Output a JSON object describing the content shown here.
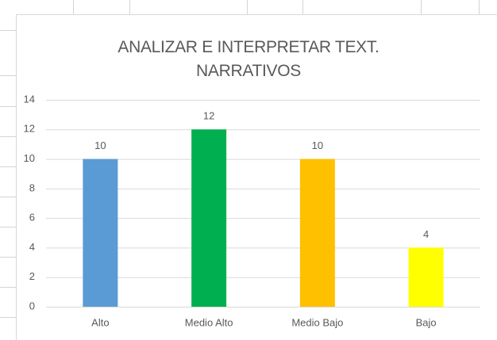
{
  "chart_data": {
    "type": "bar",
    "title": "ANALIZAR  E INTERPRETAR TEXT. NARRATIVOS",
    "categories": [
      "Alto",
      "Medio Alto",
      "Medio Bajo",
      "Bajo"
    ],
    "values": [
      10,
      12,
      10,
      4
    ],
    "colors": [
      "#5b9bd5",
      "#00b050",
      "#ffc000",
      "#ffff00"
    ],
    "ylim": [
      0,
      14
    ],
    "yticks": [
      0,
      2,
      4,
      6,
      8,
      10,
      12,
      14
    ],
    "grid": true,
    "data_labels": true
  }
}
